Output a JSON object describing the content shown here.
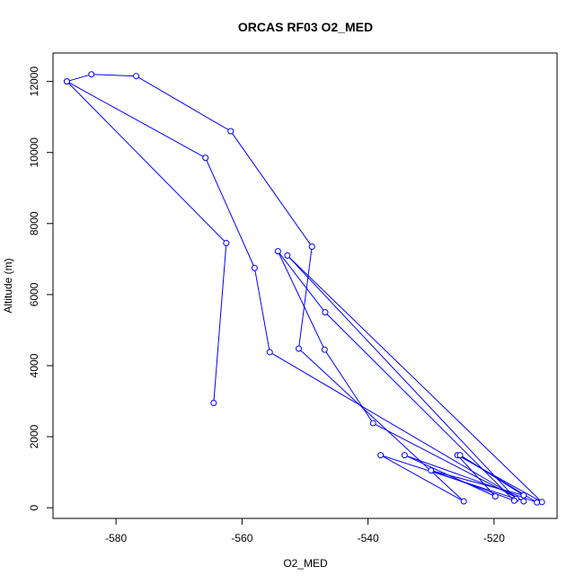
{
  "chart_data": {
    "type": "line",
    "title": "ORCAS RF03 O2_MED",
    "xlabel": "O2_MED",
    "ylabel": "Altitude (m)",
    "xlim": [
      -590,
      -510
    ],
    "ylim": [
      -300,
      12800
    ],
    "x_ticks": [
      -580,
      -560,
      -540,
      -520
    ],
    "y_ticks": [
      0,
      2000,
      4000,
      6000,
      8000,
      10000,
      12000
    ],
    "grid": false,
    "series": [
      {
        "color": "#0000ff",
        "marker": "open-circle",
        "points": [
          {
            "x": -564.5,
            "y": 2950
          },
          {
            "x": -562.5,
            "y": 7450
          },
          {
            "x": -587.8,
            "y": 12000
          },
          {
            "x": -583.9,
            "y": 12200
          },
          {
            "x": -576.8,
            "y": 12150
          },
          {
            "x": -561.8,
            "y": 10600
          },
          {
            "x": -548.9,
            "y": 7350
          },
          {
            "x": -551.0,
            "y": 4480
          },
          {
            "x": -524.8,
            "y": 180
          },
          {
            "x": -538.0,
            "y": 1480
          },
          {
            "x": -516.5,
            "y": 250
          },
          {
            "x": -552.8,
            "y": 7100
          },
          {
            "x": -512.4,
            "y": 160
          },
          {
            "x": -525.8,
            "y": 1480
          },
          {
            "x": -519.8,
            "y": 320
          },
          {
            "x": -534.2,
            "y": 1480
          },
          {
            "x": -513.2,
            "y": 150
          },
          {
            "x": -525.4,
            "y": 1480
          },
          {
            "x": -515.3,
            "y": 350
          },
          {
            "x": -530.0,
            "y": 1050
          },
          {
            "x": -516.8,
            "y": 200
          },
          {
            "x": -546.8,
            "y": 5500
          },
          {
            "x": -554.3,
            "y": 7220
          },
          {
            "x": -546.9,
            "y": 4450
          },
          {
            "x": -539.2,
            "y": 2380
          },
          {
            "x": -515.3,
            "y": 180
          },
          {
            "x": -555.6,
            "y": 4380
          },
          {
            "x": -558.0,
            "y": 6750
          },
          {
            "x": -565.8,
            "y": 9850
          },
          {
            "x": -587.8,
            "y": 12000
          }
        ]
      }
    ]
  }
}
